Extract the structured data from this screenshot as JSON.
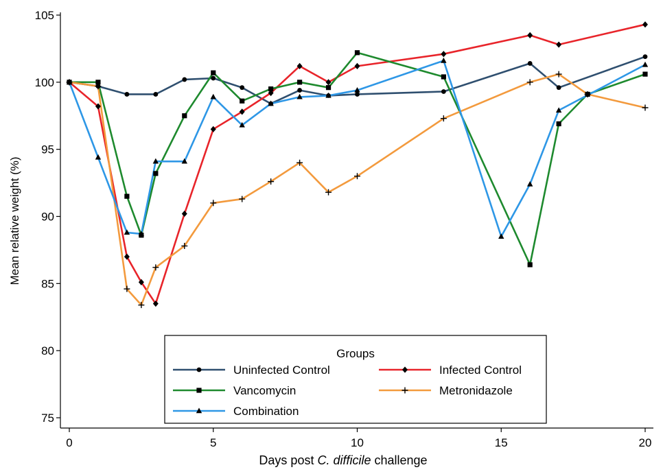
{
  "chart_data": {
    "type": "line",
    "xlabel_prefix": "Days post ",
    "xlabel_italic": "C. difficile",
    "xlabel_suffix": " challenge",
    "ylabel": "Mean relative weight (%)",
    "xlim": [
      0,
      20
    ],
    "ylim": [
      75,
      105
    ],
    "xticks": [
      0,
      5,
      10,
      15,
      20
    ],
    "yticks": [
      75,
      80,
      85,
      90,
      95,
      100,
      105
    ],
    "grid": false,
    "legend": {
      "title": "Groups",
      "placement": "bottom-center"
    },
    "series": [
      {
        "name": "Uninfected Control",
        "color": "#2f4f6f",
        "marker": "circle",
        "x": [
          0,
          1,
          2,
          3,
          4,
          5,
          6,
          7,
          8,
          9,
          10,
          13,
          16,
          17,
          20
        ],
        "y": [
          100.0,
          99.7,
          99.1,
          99.1,
          100.2,
          100.3,
          99.6,
          98.4,
          99.4,
          99.0,
          99.1,
          99.3,
          101.4,
          99.6,
          101.9
        ]
      },
      {
        "name": "Infected Control",
        "color": "#e8242a",
        "marker": "diamond",
        "x": [
          0,
          1,
          2,
          2.5,
          3,
          4,
          5,
          6,
          7,
          8,
          9,
          10,
          13,
          16,
          17,
          20
        ],
        "y": [
          100.0,
          98.2,
          87.0,
          85.1,
          83.5,
          90.2,
          96.5,
          97.8,
          99.2,
          101.2,
          100.0,
          101.2,
          102.1,
          103.5,
          102.8,
          104.3
        ]
      },
      {
        "name": "Vancomycin",
        "color": "#1e8a2e",
        "marker": "square",
        "x": [
          0,
          1,
          2,
          2.5,
          3,
          4,
          5,
          6,
          7,
          8,
          9,
          10,
          13,
          16,
          17,
          18,
          20
        ],
        "y": [
          100.0,
          100.0,
          91.5,
          88.6,
          93.2,
          97.5,
          100.7,
          98.6,
          99.5,
          100.0,
          99.6,
          102.2,
          100.4,
          86.4,
          96.9,
          99.1,
          100.6
        ]
      },
      {
        "name": "Metronidazole",
        "color": "#f39a3d",
        "marker": "plus",
        "x": [
          0,
          1,
          2,
          2.5,
          3,
          4,
          5,
          6,
          7,
          8,
          9,
          10,
          13,
          16,
          17,
          18,
          20
        ],
        "y": [
          100.0,
          99.7,
          84.6,
          83.4,
          86.2,
          87.8,
          91.0,
          91.3,
          92.6,
          94.0,
          91.8,
          93.0,
          97.3,
          100.0,
          100.6,
          99.1,
          98.1
        ]
      },
      {
        "name": "Combination",
        "color": "#2e97e6",
        "marker": "triangle",
        "x": [
          0,
          1,
          2,
          2.5,
          3,
          4,
          5,
          6,
          7,
          8,
          9,
          10,
          13,
          15,
          16,
          17,
          20
        ],
        "y": [
          100.0,
          94.4,
          88.8,
          88.7,
          94.1,
          94.1,
          98.9,
          96.8,
          98.4,
          98.9,
          99.0,
          99.4,
          101.6,
          88.5,
          92.4,
          97.9,
          101.3
        ]
      }
    ]
  }
}
